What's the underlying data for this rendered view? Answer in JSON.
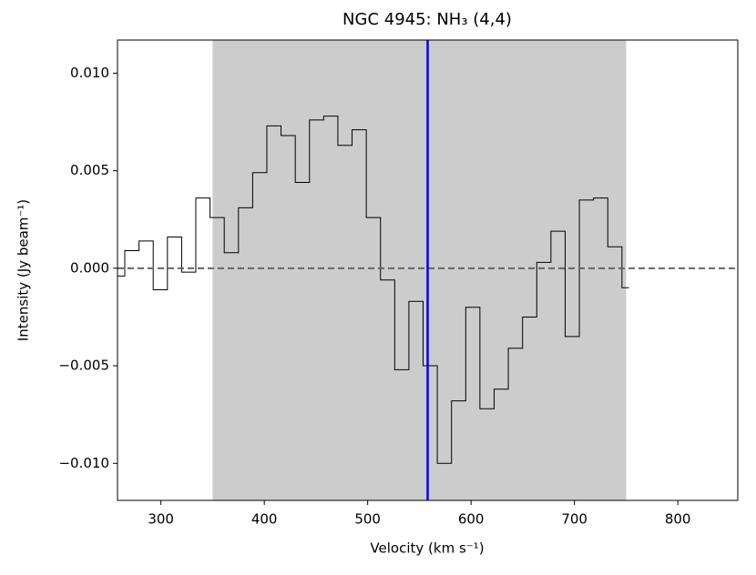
{
  "chart_data": {
    "type": "step",
    "title": "NGC 4945: NH₃ (4,4)",
    "x_label": "Velocity (km s⁻¹)",
    "y_label": "Intensity (Jy beam⁻¹)",
    "x": [
      258.2,
      271.9,
      285.7,
      299.4,
      313.2,
      326.9,
      340.6,
      354.4,
      368.1,
      381.9,
      395.6,
      409.3,
      423.1,
      436.8,
      450.6,
      464.3,
      478.0,
      491.8,
      505.5,
      519.3,
      533.0,
      546.7,
      560.5,
      574.2,
      588.0,
      601.7,
      615.4,
      629.2,
      642.9,
      656.7,
      670.4,
      684.1,
      697.9,
      711.6,
      725.4,
      739.1,
      752.8
    ],
    "values": [
      -0.0004,
      0.0009,
      0.0014,
      -0.0011,
      0.0016,
      -0.0002,
      0.0036,
      0.0026,
      0.0008,
      0.0031,
      0.0049,
      0.0073,
      0.0068,
      0.0044,
      0.0076,
      0.0078,
      0.0063,
      0.0071,
      0.0026,
      -0.0006,
      -0.0052,
      -0.0017,
      -0.005,
      -0.01,
      -0.0068,
      -0.002,
      -0.0072,
      -0.0062,
      -0.0041,
      -0.0025,
      0.0003,
      0.0019,
      -0.0035,
      0.0035,
      0.0036,
      0.0011,
      -0.001
    ],
    "color": "#000000",
    "xlim": [
      258,
      858
    ],
    "ylim": [
      -0.0119,
      0.0117
    ],
    "xticks": [
      300,
      400,
      500,
      600,
      700,
      800
    ],
    "yticks": [
      {
        "value": -0.01,
        "label": "−0.010"
      },
      {
        "value": -0.005,
        "label": "−0.005"
      },
      {
        "value": 0,
        "label": "0.000"
      },
      {
        "value": 0.005,
        "label": "0.005"
      },
      {
        "value": 0.01,
        "label": "0.010"
      }
    ],
    "spans": [
      {
        "x0": 350,
        "x1": 750,
        "color": "#cccccc"
      }
    ],
    "vlines": [
      {
        "x": 558,
        "color": "#0000ff"
      }
    ],
    "hlines": [
      {
        "y": 0,
        "color": "#666666"
      }
    ]
  }
}
